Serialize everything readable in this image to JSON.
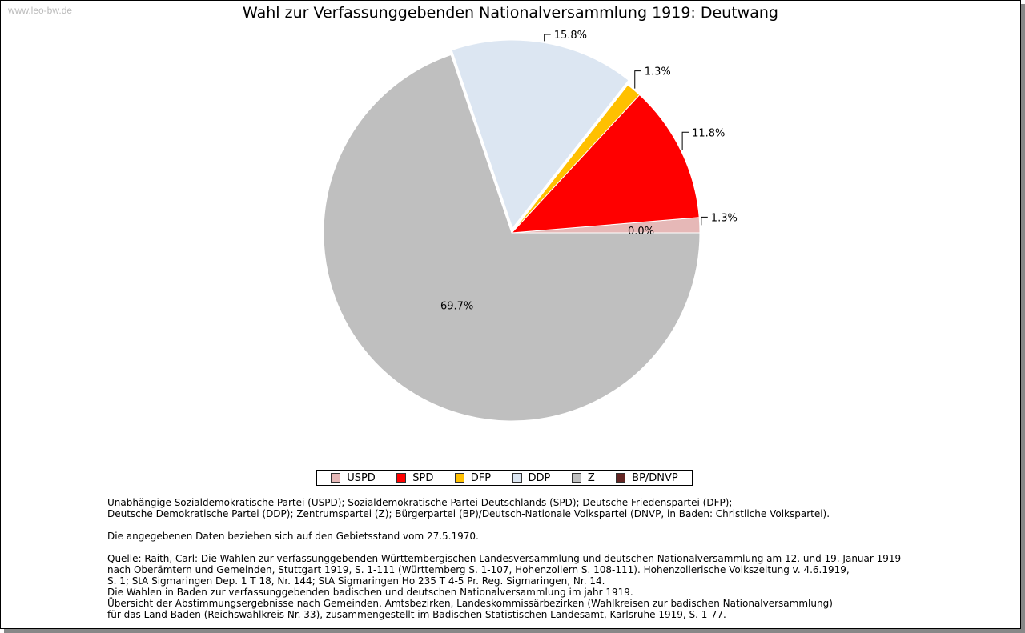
{
  "watermark": "www.leo-bw.de",
  "chart_data": {
    "type": "pie",
    "title": "Wahl zur Verfassunggebenden Nationalversammlung 1919: Deutwang",
    "categories": [
      "USPD",
      "SPD",
      "DFP",
      "DDP",
      "Z",
      "BP/DNVP"
    ],
    "values": [
      1.3,
      11.8,
      1.3,
      15.8,
      69.7,
      0.0
    ],
    "labels": [
      "1.3%",
      "11.8%",
      "1.3%",
      "15.8%",
      "69.7%",
      "0.0%"
    ],
    "colors": [
      "#e6b8b7",
      "#ff0000",
      "#ffc000",
      "#dce6f2",
      "#bfbfbf",
      "#632523"
    ],
    "exploded": "DDP",
    "legend_position": "bottom"
  },
  "notes": {
    "abbrev": "Unabhängige Sozialdemokratische Partei (USPD); Sozialdemokratische Partei Deutschlands (SPD); Deutsche Friedenspartei (DFP);\nDeutsche Demokratische Partei (DDP); Zentrumspartei (Z); Bürgerpartei (BP)/Deutsch-Nationale Volkspartei (DNVP, in Baden: Christliche Volkspartei).",
    "gebiet": "Die angegebenen Daten beziehen sich auf den Gebietsstand vom 27.5.1970.",
    "quelle": "Quelle: Raith, Carl: Die Wahlen zur verfassunggebenden Württembergischen Landesversammlung und deutschen Nationalversammlung am 12. und 19. Januar 1919\nnach Oberämtern und Gemeinden, Stuttgart 1919, S. 1-111 (Württemberg S. 1-107, Hohenzollern S. 108-111). Hohenzollerische Volkszeitung v. 4.6.1919,\nS. 1; StA Sigmaringen Dep. 1 T 18, Nr. 144; StA Sigmaringen Ho 235 T 4-5 Pr. Reg. Sigmaringen, Nr. 14.\nDie Wahlen in Baden zur verfassunggebenden badischen und deutschen Nationalversammlung im jahr 1919.\nÜbersicht der Abstimmungsergebnisse nach Gemeinden, Amtsbezirken, Landeskommissärbezirken (Wahlkreisen zur badischen Nationalversammlung)\nfür das Land Baden (Reichswahlkreis Nr. 33), zusammengestellt im Badischen Statistischen Landesamt, Karlsruhe 1919, S. 1-77."
  }
}
